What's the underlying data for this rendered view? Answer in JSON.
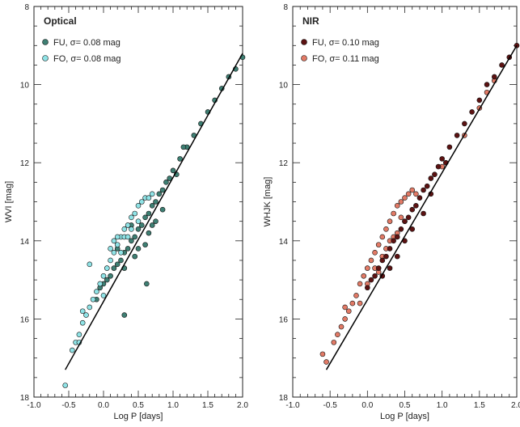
{
  "chart_data": [
    {
      "type": "scatter",
      "title": "Optical",
      "xlabel": "Log P [days]",
      "ylabel": "WVI [mag]",
      "xlim": [
        -1.0,
        2.0
      ],
      "ylim": [
        18,
        8
      ],
      "y_inverted": true,
      "xticks": [
        "-1.0",
        "-0.5",
        "0.0",
        "0.5",
        "1.0",
        "1.5",
        "2.0"
      ],
      "yticks": [
        "8",
        "10",
        "12",
        "14",
        "16",
        "18"
      ],
      "legend_position": "top-left",
      "fit_line": {
        "x": [
          -0.55,
          2.0
        ],
        "y": [
          17.3,
          9.2
        ]
      },
      "series": [
        {
          "name": "FU, σ= 0.08 mag",
          "color": "#3e7f73",
          "points": [
            [
              -0.05,
              15.2
            ],
            [
              0.05,
              15.0
            ],
            [
              0.1,
              14.9
            ],
            [
              0.15,
              14.7
            ],
            [
              0.2,
              14.6
            ],
            [
              0.25,
              14.5
            ],
            [
              0.3,
              14.3
            ],
            [
              0.35,
              14.2
            ],
            [
              0.4,
              14.0
            ],
            [
              0.45,
              13.9
            ],
            [
              0.5,
              13.7
            ],
            [
              0.55,
              13.6
            ],
            [
              0.6,
              13.4
            ],
            [
              0.65,
              13.3
            ],
            [
              0.7,
              13.1
            ],
            [
              0.75,
              13.0
            ],
            [
              0.8,
              12.8
            ],
            [
              0.85,
              12.7
            ],
            [
              0.9,
              12.5
            ],
            [
              0.95,
              12.4
            ],
            [
              1.0,
              12.2
            ],
            [
              1.1,
              11.9
            ],
            [
              1.2,
              11.6
            ],
            [
              1.3,
              11.3
            ],
            [
              1.4,
              11.0
            ],
            [
              1.5,
              10.7
            ],
            [
              1.6,
              10.4
            ],
            [
              1.7,
              10.1
            ],
            [
              1.8,
              9.8
            ],
            [
              1.9,
              9.6
            ],
            [
              2.0,
              9.3
            ],
            [
              0.3,
              14.7
            ],
            [
              0.45,
              14.4
            ],
            [
              0.6,
              14.1
            ],
            [
              0.62,
              15.1
            ],
            [
              0.7,
              13.6
            ],
            [
              0.85,
              13.2
            ],
            [
              0.4,
              13.6
            ],
            [
              0.2,
              14.2
            ],
            [
              0.5,
              14.2
            ],
            [
              0.65,
              13.8
            ],
            [
              0.75,
              13.5
            ],
            [
              1.05,
              12.3
            ],
            [
              1.15,
              11.6
            ],
            [
              -0.1,
              15.5
            ],
            [
              0.0,
              15.1
            ],
            [
              0.3,
              15.9
            ]
          ]
        },
        {
          "name": "FO, σ= 0.08 mag",
          "color": "#8fe3e6",
          "points": [
            [
              -0.55,
              17.7
            ],
            [
              -0.45,
              16.8
            ],
            [
              -0.4,
              16.6
            ],
            [
              -0.35,
              16.4
            ],
            [
              -0.3,
              16.1
            ],
            [
              -0.25,
              15.9
            ],
            [
              -0.2,
              15.7
            ],
            [
              -0.15,
              15.5
            ],
            [
              -0.1,
              15.3
            ],
            [
              -0.05,
              15.1
            ],
            [
              0.0,
              14.9
            ],
            [
              0.05,
              14.7
            ],
            [
              0.1,
              14.5
            ],
            [
              0.15,
              14.3
            ],
            [
              0.2,
              14.1
            ],
            [
              0.25,
              13.9
            ],
            [
              0.3,
              13.7
            ],
            [
              0.35,
              13.6
            ],
            [
              0.4,
              13.4
            ],
            [
              0.45,
              13.3
            ],
            [
              0.5,
              13.1
            ],
            [
              0.55,
              13.0
            ],
            [
              0.6,
              12.9
            ],
            [
              0.65,
              12.9
            ],
            [
              0.7,
              12.8
            ],
            [
              0.1,
              14.2
            ],
            [
              0.2,
              13.9
            ],
            [
              0.3,
              13.9
            ],
            [
              0.4,
              13.7
            ],
            [
              -0.2,
              14.6
            ],
            [
              0.0,
              15.4
            ],
            [
              0.15,
              14.0
            ],
            [
              0.25,
              14.3
            ],
            [
              0.35,
              13.9
            ],
            [
              0.5,
              13.5
            ],
            [
              -0.35,
              16.6
            ],
            [
              -0.3,
              15.8
            ]
          ]
        }
      ]
    },
    {
      "type": "scatter",
      "title": "NIR",
      "xlabel": "Log P [days]",
      "ylabel": "WHJK [mag]",
      "xlim": [
        -1.0,
        2.0
      ],
      "ylim": [
        18,
        8
      ],
      "y_inverted": true,
      "xticks": [
        "-1.0",
        "-0.5",
        "0.0",
        "0.5",
        "1.0",
        "1.5",
        "2.0"
      ],
      "yticks": [
        "8",
        "10",
        "12",
        "14",
        "16",
        "18"
      ],
      "legend_position": "top-left",
      "fit_line": {
        "x": [
          -0.55,
          2.0
        ],
        "y": [
          17.3,
          9.0
        ]
      },
      "series": [
        {
          "name": "FU, σ= 0.10 mag",
          "color": "#5c1212",
          "points": [
            [
              0.0,
              15.2
            ],
            [
              0.05,
              15.0
            ],
            [
              0.1,
              14.9
            ],
            [
              0.15,
              14.7
            ],
            [
              0.2,
              14.5
            ],
            [
              0.25,
              14.4
            ],
            [
              0.3,
              14.2
            ],
            [
              0.35,
              14.0
            ],
            [
              0.4,
              13.9
            ],
            [
              0.45,
              13.7
            ],
            [
              0.5,
              13.5
            ],
            [
              0.55,
              13.4
            ],
            [
              0.6,
              13.2
            ],
            [
              0.65,
              13.1
            ],
            [
              0.7,
              12.9
            ],
            [
              0.75,
              12.7
            ],
            [
              0.8,
              12.6
            ],
            [
              0.85,
              12.4
            ],
            [
              0.9,
              12.3
            ],
            [
              0.95,
              12.1
            ],
            [
              1.0,
              11.9
            ],
            [
              1.1,
              11.6
            ],
            [
              1.2,
              11.3
            ],
            [
              1.3,
              11.0
            ],
            [
              1.4,
              10.7
            ],
            [
              1.5,
              10.4
            ],
            [
              1.6,
              10.0
            ],
            [
              1.7,
              9.8
            ],
            [
              1.8,
              9.5
            ],
            [
              1.9,
              9.3
            ],
            [
              2.0,
              9.0
            ],
            [
              0.4,
              14.4
            ],
            [
              0.6,
              13.7
            ],
            [
              0.75,
              13.3
            ],
            [
              0.5,
              14.0
            ],
            [
              0.3,
              14.7
            ],
            [
              0.2,
              14.9
            ],
            [
              0.85,
              12.8
            ],
            [
              1.05,
              12.0
            ]
          ]
        },
        {
          "name": "FO, σ= 0.11 mag",
          "color": "#e27a66",
          "points": [
            [
              -0.6,
              16.9
            ],
            [
              -0.55,
              17.1
            ],
            [
              -0.4,
              16.4
            ],
            [
              -0.35,
              16.2
            ],
            [
              -0.3,
              16.0
            ],
            [
              -0.25,
              15.8
            ],
            [
              -0.2,
              15.6
            ],
            [
              -0.15,
              15.4
            ],
            [
              -0.1,
              15.1
            ],
            [
              -0.05,
              14.9
            ],
            [
              0.0,
              14.7
            ],
            [
              0.05,
              14.5
            ],
            [
              0.1,
              14.3
            ],
            [
              0.15,
              14.1
            ],
            [
              0.2,
              13.9
            ],
            [
              0.25,
              13.7
            ],
            [
              0.3,
              13.5
            ],
            [
              0.35,
              13.3
            ],
            [
              0.4,
              13.1
            ],
            [
              0.45,
              13.0
            ],
            [
              0.5,
              12.9
            ],
            [
              0.55,
              12.8
            ],
            [
              0.6,
              12.7
            ],
            [
              0.65,
              12.8
            ],
            [
              0.1,
              14.7
            ],
            [
              0.2,
              14.4
            ],
            [
              0.3,
              14.0
            ],
            [
              0.4,
              13.8
            ],
            [
              0.5,
              13.5
            ],
            [
              -0.1,
              15.6
            ],
            [
              0.0,
              15.1
            ],
            [
              0.15,
              14.8
            ],
            [
              0.35,
              13.9
            ],
            [
              -0.45,
              16.6
            ],
            [
              -0.3,
              15.7
            ],
            [
              0.25,
              14.2
            ],
            [
              0.45,
              13.4
            ],
            [
              1.0,
              12.1
            ],
            [
              1.3,
              11.3
            ],
            [
              1.5,
              10.6
            ],
            [
              1.6,
              10.2
            ],
            [
              1.7,
              9.9
            ]
          ]
        }
      ]
    }
  ]
}
